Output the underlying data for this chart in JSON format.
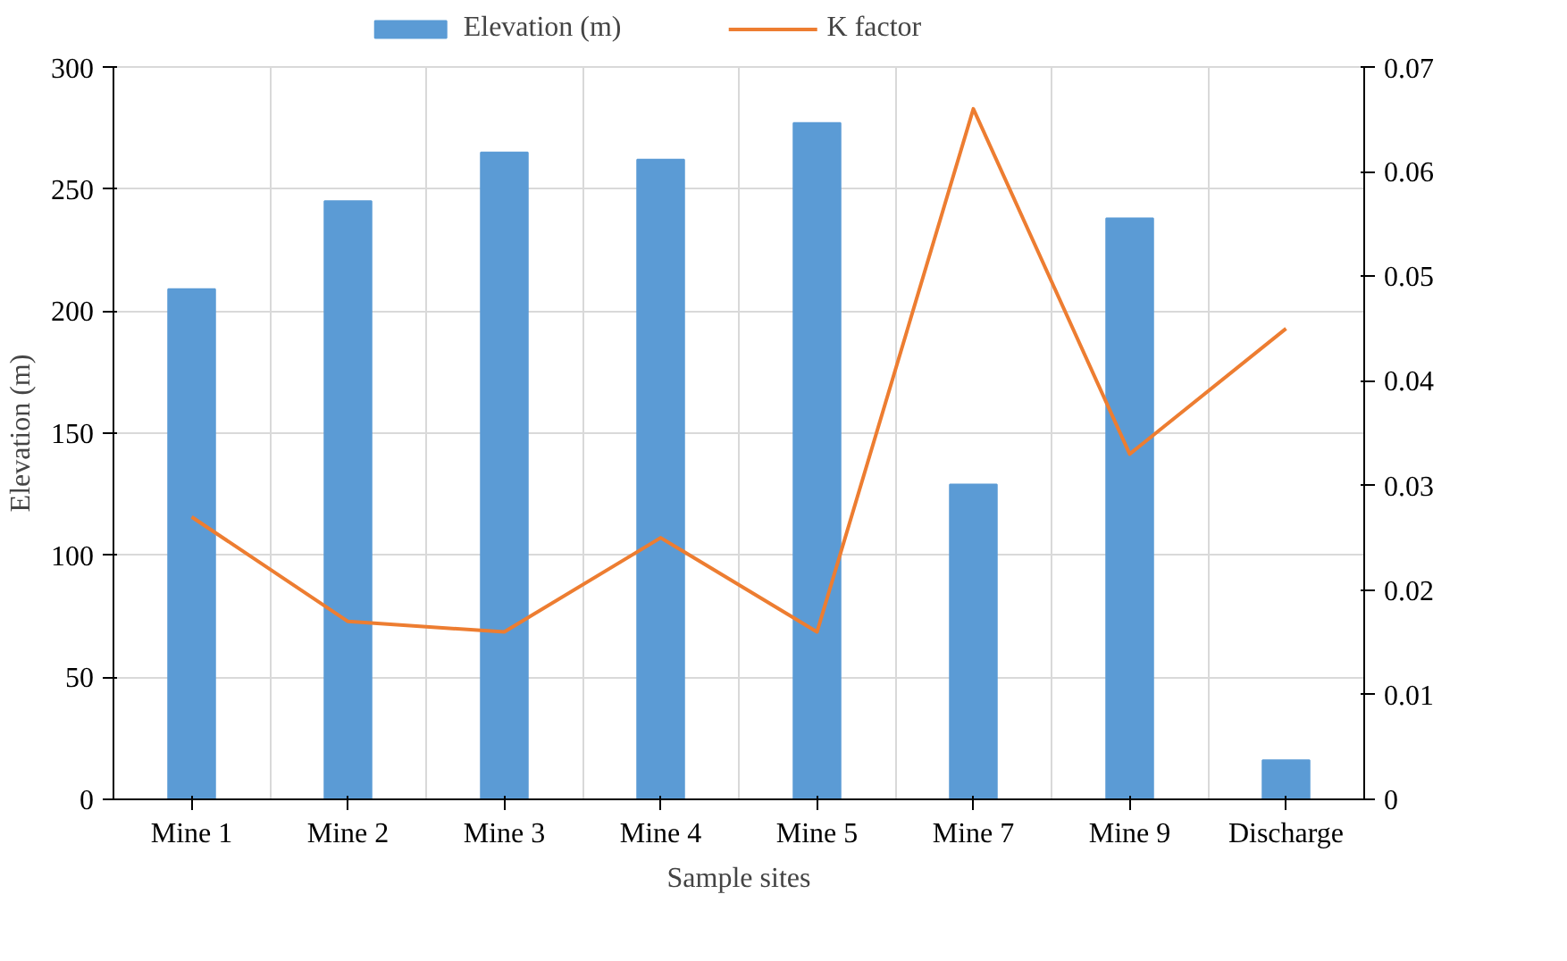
{
  "chart_data": {
    "type": "bar",
    "xlabel": "Sample sites",
    "ylabel": "Elevation (m)",
    "categories": [
      "Mine 1",
      "Mine 2",
      "Mine 3",
      "Mine 4",
      "Mine 5",
      "Mine 7",
      "Mine 9",
      "Discharge"
    ],
    "series": [
      {
        "name": "Elevation (m)",
        "color": "#5b9bd5",
        "values": [
          209,
          245,
          265,
          262,
          277,
          129,
          238,
          16
        ]
      },
      {
        "name": "K factor",
        "type": "line",
        "axis": "y2",
        "color": "#ed7d31",
        "values": [
          0.027,
          0.017,
          0.016,
          0.025,
          0.016,
          0.066,
          0.033,
          0.045
        ]
      }
    ],
    "ylim": [
      0,
      300
    ],
    "yticks": [
      0,
      50,
      100,
      150,
      200,
      250,
      300
    ],
    "y2lim": [
      0,
      0.07
    ],
    "y2ticks": [
      0,
      0.01,
      0.02,
      0.03,
      0.04,
      0.05,
      0.06,
      0.07
    ],
    "grid": true,
    "legend": "top"
  }
}
